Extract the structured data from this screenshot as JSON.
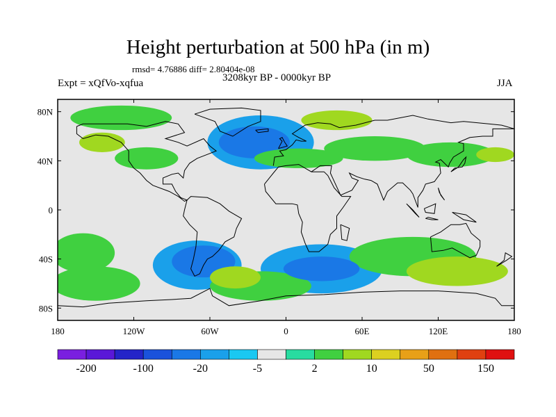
{
  "title": "Height perturbation at 500 hPa (in m)",
  "stats_text": "rmsd= 4.76886 diff= 2.80404e-08",
  "period_text": "3208kyr BP - 0000kyr BP",
  "experiment_text": "Expt = xQfVo-xqfua",
  "season_text": "JJA",
  "chart_data": {
    "type": "heatmap",
    "title": "Height perturbation at 500 hPa (in m)",
    "subtitle": "3208kyr BP - 0000kyr BP",
    "xlabel": "",
    "ylabel": "",
    "xlim": [
      -180,
      180
    ],
    "ylim": [
      -90,
      90
    ],
    "x_ticks": [
      {
        "value": -180,
        "label": "180"
      },
      {
        "value": -120,
        "label": "120W"
      },
      {
        "value": -60,
        "label": "60W"
      },
      {
        "value": 0,
        "label": "0"
      },
      {
        "value": 60,
        "label": "60E"
      },
      {
        "value": 120,
        "label": "120E"
      },
      {
        "value": 180,
        "label": "180"
      }
    ],
    "y_ticks": [
      {
        "value": 80,
        "label": "80N"
      },
      {
        "value": 40,
        "label": "40N"
      },
      {
        "value": 0,
        "label": "0"
      },
      {
        "value": -40,
        "label": "40S"
      },
      {
        "value": -80,
        "label": "80S"
      }
    ],
    "colorbar": {
      "colors": [
        "#7a1fe0",
        "#5a18d8",
        "#2424c8",
        "#1a52dc",
        "#1a78e6",
        "#1aa0ea",
        "#1ac8f2",
        "#e6e6e6",
        "#28dca0",
        "#40d040",
        "#a0d820",
        "#dcd020",
        "#e8a018",
        "#e07010",
        "#e04010",
        "#e01010"
      ],
      "labels": [
        {
          "after_box": 1,
          "text": "-200"
        },
        {
          "after_box": 3,
          "text": "-100"
        },
        {
          "after_box": 5,
          "text": "-20"
        },
        {
          "after_box": 7,
          "text": "-5"
        },
        {
          "after_box": 9,
          "text": "2"
        },
        {
          "after_box": 11,
          "text": "10"
        },
        {
          "after_box": 13,
          "text": "50"
        },
        {
          "after_box": 15,
          "text": "150"
        }
      ]
    },
    "anomaly_regions": [
      {
        "lon": -25,
        "lat": 55,
        "rlon": 28,
        "rlat": 13,
        "level": 4
      },
      {
        "lon": -20,
        "lat": 55,
        "rlon": 42,
        "rlat": 22,
        "level": 5
      },
      {
        "lon": 28,
        "lat": -48,
        "rlon": 30,
        "rlat": 10,
        "level": 4
      },
      {
        "lon": 28,
        "lat": -48,
        "rlon": 48,
        "rlat": 20,
        "level": 5
      },
      {
        "lon": -65,
        "lat": -42,
        "rlon": 25,
        "rlat": 13,
        "level": 4
      },
      {
        "lon": -70,
        "lat": -45,
        "rlon": 35,
        "rlat": 20,
        "level": 5
      },
      {
        "lon": 135,
        "lat": -50,
        "rlon": 40,
        "rlat": 12,
        "level": 10
      },
      {
        "lon": -40,
        "lat": -55,
        "rlon": 20,
        "rlat": 9,
        "level": 10
      },
      {
        "lon": 40,
        "lat": 73,
        "rlon": 28,
        "rlat": 8,
        "level": 10
      },
      {
        "lon": 165,
        "lat": 45,
        "rlon": 15,
        "rlat": 6,
        "level": 10
      },
      {
        "lon": -145,
        "lat": 55,
        "rlon": 18,
        "rlat": 8,
        "level": 10
      },
      {
        "lon": 130,
        "lat": 45,
        "rlon": 35,
        "rlat": 10,
        "level": 9
      },
      {
        "lon": -20,
        "lat": -62,
        "rlon": 40,
        "rlat": 12,
        "level": 9
      },
      {
        "lon": -110,
        "lat": 42,
        "rlon": 25,
        "rlat": 9,
        "level": 9
      },
      {
        "lon": -130,
        "lat": 75,
        "rlon": 40,
        "rlat": 10,
        "level": 9
      },
      {
        "lon": 70,
        "lat": 50,
        "rlon": 40,
        "rlat": 10,
        "level": 9
      },
      {
        "lon": 100,
        "lat": -38,
        "rlon": 50,
        "rlat": 16,
        "level": 9
      },
      {
        "lon": -150,
        "lat": -60,
        "rlon": 35,
        "rlat": 14,
        "level": 9
      },
      {
        "lon": -160,
        "lat": -35,
        "rlon": 25,
        "rlat": 16,
        "level": 9
      },
      {
        "lon": 10,
        "lat": 42,
        "rlon": 35,
        "rlat": 8,
        "level": 9
      }
    ]
  }
}
